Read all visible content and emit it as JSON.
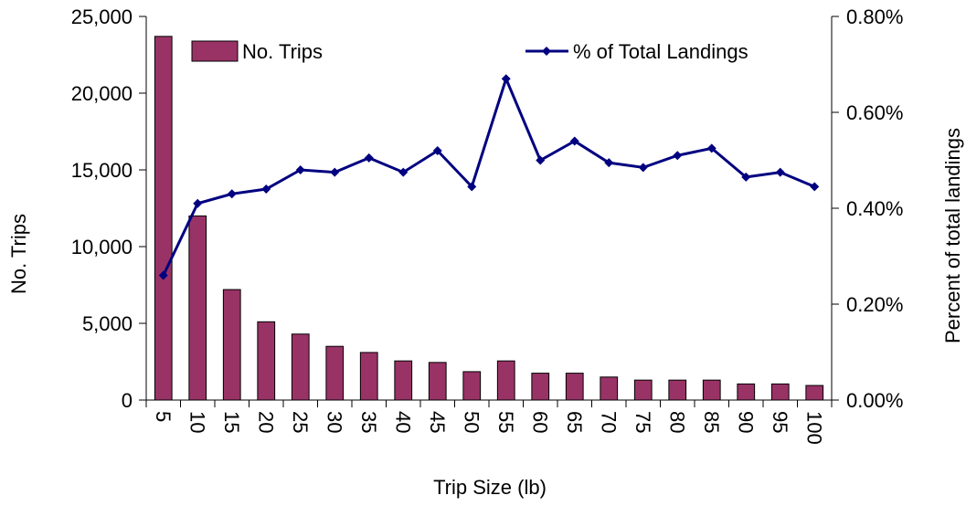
{
  "chart_data": {
    "type": "bar+line",
    "xlabel": "Trip Size (lb)",
    "y1label": "No. Trips",
    "y2label": "Percent of total landings",
    "categories": [
      "5",
      "10",
      "15",
      "20",
      "25",
      "30",
      "35",
      "40",
      "45",
      "50",
      "55",
      "60",
      "65",
      "70",
      "75",
      "80",
      "85",
      "90",
      "95",
      "100"
    ],
    "y1lim": [
      0,
      25000
    ],
    "y1ticks": [
      "0",
      "5,000",
      "10,000",
      "15,000",
      "20,000",
      "25,000"
    ],
    "y2lim": [
      0,
      0.8
    ],
    "y2ticks": [
      "0.00%",
      "0.20%",
      "0.40%",
      "0.60%",
      "0.80%"
    ],
    "series": [
      {
        "name": "No. Trips",
        "kind": "bar",
        "color": "#993366",
        "values": [
          23700,
          12000,
          7200,
          5100,
          4300,
          3500,
          3100,
          2550,
          2450,
          1850,
          2550,
          1750,
          1750,
          1500,
          1300,
          1300,
          1300,
          1050,
          1050,
          950
        ]
      },
      {
        "name": "% of Total Landings",
        "kind": "line",
        "color": "#000080",
        "values": [
          0.26,
          0.41,
          0.43,
          0.44,
          0.48,
          0.475,
          0.505,
          0.475,
          0.52,
          0.445,
          0.67,
          0.5,
          0.54,
          0.495,
          0.485,
          0.51,
          0.525,
          0.465,
          0.475,
          0.445
        ]
      }
    ],
    "legend": "top"
  }
}
